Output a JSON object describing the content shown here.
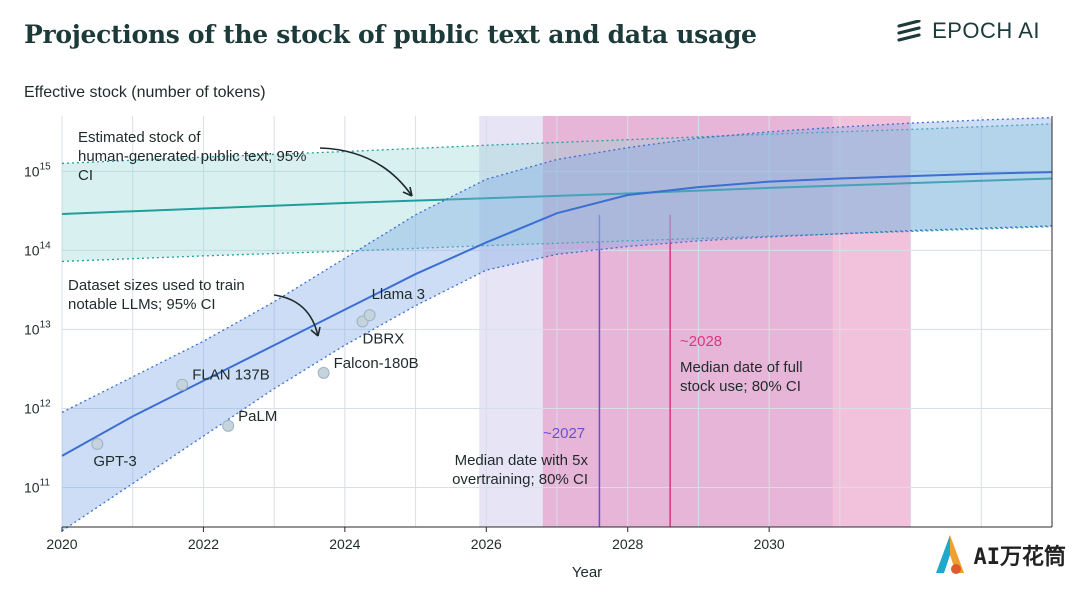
{
  "header": {
    "title": "Projections of the stock of public text and data usage",
    "brand": "EPOCH AI"
  },
  "watermark": {
    "text": "AI万花筒"
  },
  "chart_data": {
    "type": "line",
    "ylabel": "Effective stock (number of tokens)",
    "xlabel": "Year",
    "xlim": [
      2020,
      2034
    ],
    "ylim_log10": [
      10.5,
      15.7
    ],
    "y_scale": "log",
    "x_ticks": [
      2020,
      2022,
      2024,
      2026,
      2028,
      2030
    ],
    "y_ticks_log10": [
      11,
      12,
      13,
      14,
      15
    ],
    "grid": true,
    "series": [
      {
        "name": "Estimated stock of human-generated public text; 95% CI",
        "color": "#1f9e9a",
        "x": [
          2020,
          2022,
          2024,
          2026,
          2028,
          2030,
          2032,
          2034
        ],
        "log10_median": [
          14.46,
          14.53,
          14.6,
          14.66,
          14.72,
          14.79,
          14.85,
          14.91
        ],
        "log10_low": [
          13.86,
          13.93,
          13.99,
          14.06,
          14.12,
          14.18,
          14.24,
          14.3
        ],
        "log10_high": [
          15.1,
          15.18,
          15.25,
          15.33,
          15.4,
          15.47,
          15.53,
          15.6
        ]
      },
      {
        "name": "Dataset sizes used to train notable LLMs; 95% CI",
        "color": "#3b6fd1",
        "x": [
          2020,
          2021,
          2022,
          2023,
          2024,
          2025,
          2026,
          2027,
          2028,
          2029,
          2030,
          2031,
          2032,
          2033,
          2034
        ],
        "log10_median": [
          11.4,
          11.9,
          12.35,
          12.8,
          13.25,
          13.7,
          14.1,
          14.47,
          14.7,
          14.8,
          14.87,
          14.91,
          14.94,
          14.97,
          14.99
        ],
        "log10_low": [
          10.45,
          11.05,
          11.65,
          12.25,
          12.8,
          13.3,
          13.75,
          13.95,
          14.05,
          14.12,
          14.17,
          14.21,
          14.25,
          14.28,
          14.31
        ],
        "log10_high": [
          11.95,
          12.4,
          12.85,
          13.35,
          13.9,
          14.45,
          14.9,
          15.15,
          15.3,
          15.42,
          15.5,
          15.56,
          15.61,
          15.65,
          15.68
        ]
      }
    ],
    "models": [
      {
        "name": "GPT-3",
        "x": 2020.5,
        "log10": 11.55
      },
      {
        "name": "FLAN 137B",
        "x": 2021.7,
        "log10": 12.3
      },
      {
        "name": "PaLM",
        "x": 2022.35,
        "log10": 11.78
      },
      {
        "name": "Falcon-180B",
        "x": 2023.7,
        "log10": 12.45
      },
      {
        "name": "DBRX",
        "x": 2024.25,
        "log10": 13.1
      },
      {
        "name": "Llama 3",
        "x": 2024.35,
        "log10": 13.18
      }
    ],
    "shaded_regions": [
      {
        "label": "5x overtraining 80% CI",
        "x0": 2025.9,
        "x1": 2030.9,
        "color": "#c9c3e8"
      },
      {
        "label": "full stock use 80% CI",
        "x0": 2026.8,
        "x1": 2032.0,
        "color": "#e88ec0"
      }
    ],
    "median_lines": [
      {
        "x": 2027.6,
        "color": "#6a4fd6"
      },
      {
        "x": 2028.6,
        "color": "#d6397f"
      }
    ],
    "annotations": {
      "text_stock": "Estimated stock of human-generated public text; 95% CI",
      "datasets": "Dataset sizes used to train notable LLMs; 95% CI",
      "full_year": "~2028",
      "full_text": "Median date of full stock use; 80% CI",
      "over_year": "~2027",
      "over_text": "Median date with 5x overtraining; 80% CI"
    }
  }
}
